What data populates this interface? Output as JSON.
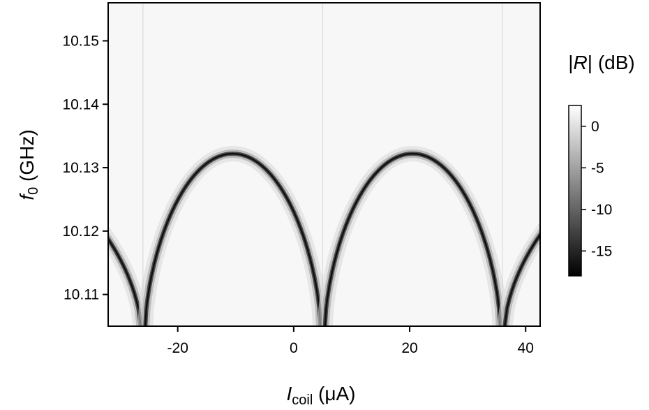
{
  "chart_data": {
    "type": "heatmap",
    "title": "",
    "xlabel": {
      "main": "I",
      "sub": "coil",
      "unit": " (μA)"
    },
    "ylabel": {
      "main": "f",
      "sub": "0",
      "unit": " (GHz)"
    },
    "xlim": [
      -32,
      42.5
    ],
    "ylim": [
      10.105,
      10.156
    ],
    "x_ticks": [
      -20,
      0,
      20,
      40
    ],
    "x_tick_labels": [
      "-20",
      "0",
      "20",
      "40"
    ],
    "y_ticks": [
      10.11,
      10.12,
      10.13,
      10.14,
      10.15
    ],
    "y_tick_labels": [
      "10.11",
      "10.12",
      "10.13",
      "10.14",
      "10.15"
    ],
    "colorscale": "gray",
    "colorbar": {
      "label": {
        "pre": "|",
        "var": "R",
        "post": "| (dB)"
      },
      "range": [
        -18,
        2.5
      ],
      "ticks": [
        0,
        -5,
        -10,
        -15
      ],
      "tick_labels": [
        "0",
        "-5",
        "-10",
        "-15"
      ]
    },
    "resonance": {
      "period_uA": 62,
      "dips_uA": [
        -26,
        5,
        36
      ],
      "max_f_GHz": 10.1322,
      "min_f_GHz": 10.105,
      "dip_depth_dB": -17
    },
    "grid": false
  }
}
